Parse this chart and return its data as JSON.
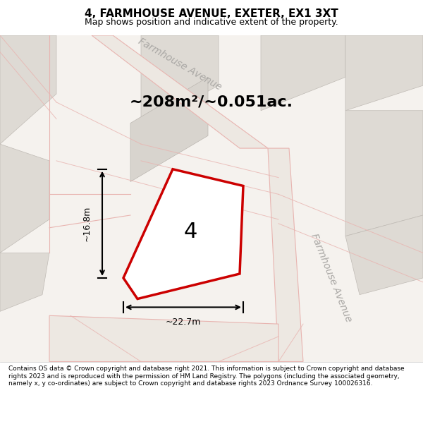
{
  "title": "4, FARMHOUSE AVENUE, EXETER, EX1 3XT",
  "subtitle": "Map shows position and indicative extent of the property.",
  "footer": "Contains OS data © Crown copyright and database right 2021. This information is subject to Crown copyright and database rights 2023 and is reproduced with the permission of HM Land Registry. The polygons (including the associated geometry, namely x, y co-ordinates) are subject to Crown copyright and database rights 2023 Ordnance Survey 100026316.",
  "area_text": "~208m²/~0.051ac.",
  "width_label": "~22.7m",
  "height_label": "~16.8m",
  "property_number": "4",
  "bg_color": "#f0ede8",
  "map_bg": "#f5f2ee",
  "road_color": "#d9c8c0",
  "building_color": "#e8e4de",
  "highlight_color": "#cc0000",
  "street_label1": "Farmhouse Avenue",
  "street_label2": "Farmhouse Avenue"
}
